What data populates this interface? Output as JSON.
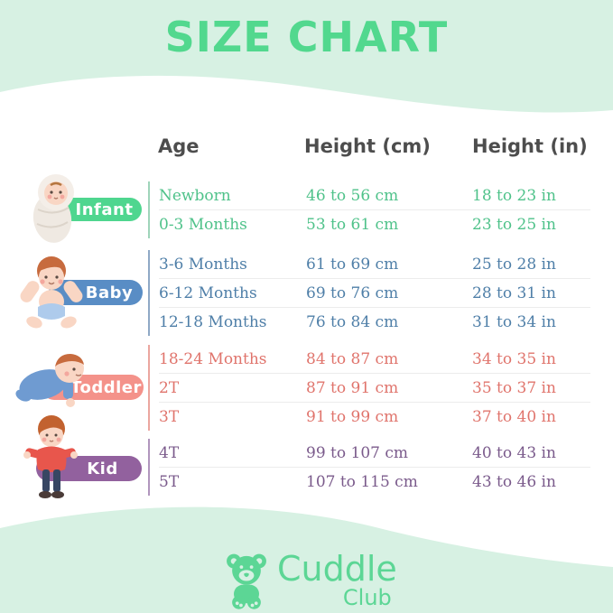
{
  "page": {
    "title": "SIZE CHART",
    "title_color": "#52d88e",
    "mint_bg": "#d7f1e3"
  },
  "table": {
    "headers": {
      "age": "Age",
      "height_cm": "Height (cm)",
      "height_in": "Height (in)"
    },
    "groups": [
      {
        "label": "Infant",
        "pill_color": "#4fd68f",
        "text_color": "#4fc28a",
        "line_color": "#9fd4ba",
        "rows": [
          {
            "age": "Newborn",
            "cm": "46 to 56 cm",
            "in": "18 to 23 in"
          },
          {
            "age": "0-3 Months",
            "cm": "53 to 61 cm",
            "in": "23 to 25 in"
          }
        ]
      },
      {
        "label": "Baby",
        "pill_color": "#598dc5",
        "text_color": "#4f7fa8",
        "line_color": "#8fa9c6",
        "rows": [
          {
            "age": "3-6 Months",
            "cm": "61 to 69 cm",
            "in": "25 to 28 in"
          },
          {
            "age": "6-12 Months",
            "cm": "69 to 76 cm",
            "in": "28 to 31 in"
          },
          {
            "age": "12-18 Months",
            "cm": "76 to 84 cm",
            "in": "31 to 34 in"
          }
        ]
      },
      {
        "label": "Toddler",
        "pill_color": "#f4928a",
        "text_color": "#e0746c",
        "line_color": "#eba69f",
        "rows": [
          {
            "age": "18-24 Months",
            "cm": "84 to 87 cm",
            "in": "34 to 35 in"
          },
          {
            "age": "2T",
            "cm": "87 to 91 cm",
            "in": "35 to 37 in"
          },
          {
            "age": "3T",
            "cm": "91 to 99 cm",
            "in": "37 to 40 in"
          }
        ]
      },
      {
        "label": "Kid",
        "pill_color": "#92619e",
        "text_color": "#7a5a8b",
        "line_color": "#b196bd",
        "rows": [
          {
            "age": "4T",
            "cm": "99 to 107 cm",
            "in": "40 to 43 in"
          },
          {
            "age": "5T",
            "cm": "107 to 115 cm",
            "in": "43 to 46 in"
          }
        ]
      }
    ]
  },
  "footer": {
    "brand_line1": "Cuddle",
    "brand_line2": "Club",
    "logo_color": "#5cd695"
  },
  "chart_data": {
    "type": "table",
    "title": "SIZE CHART",
    "columns": [
      "Age",
      "Height (cm)",
      "Height (in)"
    ],
    "sections": [
      {
        "category": "Infant",
        "rows": [
          [
            "Newborn",
            "46 to 56 cm",
            "18 to 23 in"
          ],
          [
            "0-3 Months",
            "53 to 61 cm",
            "23 to 25 in"
          ]
        ]
      },
      {
        "category": "Baby",
        "rows": [
          [
            "3-6 Months",
            "61 to 69 cm",
            "25 to 28 in"
          ],
          [
            "6-12 Months",
            "69 to 76 cm",
            "28 to 31 in"
          ],
          [
            "12-18 Months",
            "76 to 84 cm",
            "31 to 34 in"
          ]
        ]
      },
      {
        "category": "Toddler",
        "rows": [
          [
            "18-24 Months",
            "84 to 87 cm",
            "34 to 35 in"
          ],
          [
            "2T",
            "87 to 91 cm",
            "35 to 37 in"
          ],
          [
            "3T",
            "91 to 99 cm",
            "37 to 40 in"
          ]
        ]
      },
      {
        "category": "Kid",
        "rows": [
          [
            "4T",
            "99 to 107 cm",
            "40 to 43 in"
          ],
          [
            "5T",
            "107 to 115 cm",
            "43 to 46 in"
          ]
        ]
      }
    ]
  }
}
